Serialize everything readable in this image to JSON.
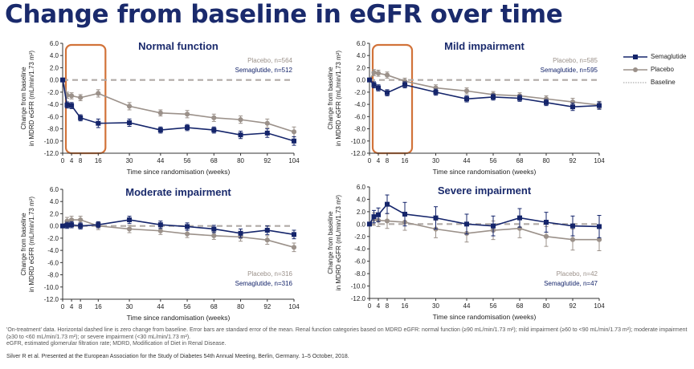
{
  "title": "Change from baseline in eGFR over time",
  "legend": {
    "items": [
      {
        "label": "Semaglutide",
        "color": "#15256b",
        "marker": "square"
      },
      {
        "label": "Placebo",
        "color": "#9b918a",
        "marker": "circle"
      },
      {
        "label": "Baseline",
        "color": "#999999",
        "marker": "dotted-line"
      }
    ]
  },
  "footnote": {
    "line1": "'On-treatment' data. Horizontal dashed line is zero change from baseline. Error bars are standard error of the mean. Renal function categories based on MDRD eGFR: normal function (≥90 mL/min/1.73 m²); mild impairment (≥60 to <90 mL/min/1.73 m²); moderate impairment (≥30 to <60 mL/min/1.73 m²); or severe impairment (<30 mL/min/1.73 m²).",
    "line2": "eGFR, estimated glomerular filtration rate; MDRD, Modification of Diet in Renal Disease."
  },
  "citation": "Silver R et al. Presented at the European Association for the Study of Diabetes 54th Annual Meeting, Berlin, Germany. 1–5 October, 2018.",
  "colors": {
    "title": "#1a2a6c",
    "semaglutide": "#15256b",
    "placebo": "#9b918a",
    "highlight": "#d2733a",
    "baseline": "#b0aaa6"
  },
  "chart_data": [
    {
      "type": "line",
      "title": "Normal function",
      "xlabel": "Time since randomisation (weeks)",
      "ylabel": "Change from baseline\nin MDRD eGFR (mL/min/1.73 m²)",
      "x_ticks": [
        0,
        4,
        8,
        16,
        30,
        44,
        56,
        68,
        80,
        92,
        104
      ],
      "ylim": [
        -12,
        6
      ],
      "y_ticks": [
        6.0,
        4.0,
        2.0,
        0.0,
        -2.0,
        -4.0,
        -6.0,
        -8.0,
        -10.0,
        -12.0
      ],
      "n_labels": [
        "Placebo, n=564",
        "Semaglutide, n=512"
      ],
      "highlight_weeks": [
        0,
        16
      ],
      "series": [
        {
          "name": "Semaglutide",
          "x": [
            0,
            2,
            4,
            8,
            16,
            30,
            44,
            56,
            68,
            80,
            92,
            104
          ],
          "values": [
            0,
            -4.1,
            -4.2,
            -6.2,
            -7.1,
            -7.0,
            -8.2,
            -7.8,
            -8.2,
            -9.0,
            -8.7,
            -10.0
          ],
          "errors": [
            0,
            0.5,
            0.5,
            0.5,
            0.7,
            0.6,
            0.5,
            0.5,
            0.5,
            0.6,
            0.7,
            0.7
          ]
        },
        {
          "name": "Placebo",
          "x": [
            0,
            2,
            4,
            8,
            16,
            30,
            44,
            56,
            68,
            80,
            92,
            104
          ],
          "values": [
            0,
            -2.5,
            -2.6,
            -2.9,
            -2.2,
            -4.3,
            -5.4,
            -5.6,
            -6.2,
            -6.5,
            -7.1,
            -8.5
          ],
          "errors": [
            0,
            0.5,
            0.5,
            0.5,
            0.6,
            0.6,
            0.5,
            0.6,
            0.6,
            0.6,
            0.7,
            0.8
          ]
        }
      ]
    },
    {
      "type": "line",
      "title": "Mild impairment",
      "xlabel": "Time since randomisation (weeks)",
      "ylabel": "Change from baseline\nin MDRD eGFR (mL/min/1.73 m²)",
      "x_ticks": [
        0,
        4,
        8,
        16,
        30,
        44,
        56,
        68,
        80,
        92,
        104
      ],
      "ylim": [
        -12,
        6
      ],
      "y_ticks": [
        6.0,
        4.0,
        2.0,
        0.0,
        -2.0,
        -4.0,
        -6.0,
        -8.0,
        -10.0,
        -12.0
      ],
      "n_labels": [
        "Placebo, n=585",
        "Semaglutide, n=595"
      ],
      "highlight_weeks": [
        0,
        16
      ],
      "series": [
        {
          "name": "Semaglutide",
          "x": [
            0,
            2,
            4,
            8,
            16,
            30,
            44,
            56,
            68,
            80,
            92,
            104
          ],
          "values": [
            0,
            -0.8,
            -1.3,
            -2.1,
            -0.8,
            -2.0,
            -3.1,
            -2.8,
            -3.0,
            -3.7,
            -4.4,
            -4.2
          ],
          "errors": [
            0,
            0.5,
            0.5,
            0.5,
            0.5,
            0.5,
            0.5,
            0.5,
            0.5,
            0.5,
            0.6,
            0.6
          ]
        },
        {
          "name": "Placebo",
          "x": [
            0,
            2,
            4,
            8,
            16,
            30,
            44,
            56,
            68,
            80,
            92,
            104
          ],
          "values": [
            0,
            1.2,
            1.1,
            0.8,
            -0.2,
            -1.3,
            -1.8,
            -2.4,
            -2.6,
            -3.1,
            -3.6,
            -4.1
          ],
          "errors": [
            0,
            0.5,
            0.5,
            0.5,
            0.5,
            0.5,
            0.5,
            0.5,
            0.5,
            0.5,
            0.6,
            0.6
          ]
        }
      ]
    },
    {
      "type": "line",
      "title": "Moderate impairment",
      "xlabel": "Time since randomisation (weeks)",
      "ylabel": "Change from baseline\nin MDRD eGFR (mL/min/1.73 m²)",
      "x_ticks": [
        0,
        4,
        8,
        16,
        30,
        44,
        56,
        68,
        80,
        92,
        104
      ],
      "ylim": [
        -12,
        6
      ],
      "y_ticks": [
        6.0,
        4.0,
        2.0,
        0.0,
        -2.0,
        -4.0,
        -6.0,
        -8.0,
        -10.0,
        -12.0
      ],
      "n_labels": [
        "Placebo, n=316",
        "Semaglutide, n=316"
      ],
      "highlight_weeks": [],
      "series": [
        {
          "name": "Semaglutide",
          "x": [
            0,
            2,
            4,
            8,
            16,
            30,
            44,
            56,
            68,
            80,
            92,
            104
          ],
          "values": [
            0,
            0.1,
            0.2,
            0.0,
            0.2,
            1.0,
            0.2,
            -0.1,
            -0.5,
            -1.2,
            -0.7,
            -1.4
          ],
          "errors": [
            0,
            0.5,
            0.5,
            0.5,
            0.5,
            0.6,
            0.6,
            0.6,
            0.6,
            0.7,
            0.7,
            0.7
          ]
        },
        {
          "name": "Placebo",
          "x": [
            0,
            2,
            4,
            8,
            16,
            30,
            44,
            56,
            68,
            80,
            92,
            104
          ],
          "values": [
            0,
            0.8,
            1.0,
            1.0,
            0.0,
            -0.5,
            -0.8,
            -1.3,
            -1.6,
            -1.8,
            -2.3,
            -3.5
          ],
          "errors": [
            0,
            0.6,
            0.6,
            0.6,
            0.6,
            0.6,
            0.6,
            0.6,
            0.6,
            0.7,
            0.7,
            0.7
          ]
        }
      ]
    },
    {
      "type": "line",
      "title": "Severe impairment",
      "xlabel": "Time since randomisation (weeks)",
      "ylabel": "Change from baseline\nin MDRD eGFR (mL/min/1.73 m²)",
      "x_ticks": [
        0,
        4,
        8,
        16,
        30,
        44,
        56,
        68,
        80,
        92,
        104
      ],
      "ylim": [
        -12,
        6
      ],
      "y_ticks": [
        6.0,
        4.0,
        2.0,
        0.0,
        -2.0,
        -4.0,
        -6.0,
        -8.0,
        -10.0,
        -12.0
      ],
      "n_labels": [
        "Placebo, n=42",
        "Semaglutide, n=47"
      ],
      "highlight_weeks": [],
      "series": [
        {
          "name": "Semaglutide",
          "x": [
            0,
            2,
            4,
            8,
            16,
            30,
            44,
            56,
            68,
            80,
            92,
            104
          ],
          "values": [
            0,
            1.2,
            1.5,
            3.2,
            1.6,
            1.0,
            0.0,
            -0.3,
            1.0,
            0.3,
            -0.3,
            -0.4
          ],
          "errors": [
            0,
            1.0,
            1.1,
            1.5,
            1.9,
            1.8,
            1.6,
            1.6,
            1.5,
            1.6,
            1.6,
            1.8
          ]
        },
        {
          "name": "Placebo",
          "x": [
            0,
            2,
            4,
            8,
            16,
            30,
            44,
            56,
            68,
            80,
            92,
            104
          ],
          "values": [
            0,
            0.8,
            0.6,
            0.5,
            0.3,
            -0.8,
            -1.5,
            -1.0,
            -0.7,
            -2.0,
            -2.5,
            -2.5
          ],
          "errors": [
            0,
            1.0,
            1.0,
            1.2,
            1.3,
            1.4,
            1.4,
            1.5,
            1.5,
            1.6,
            1.7,
            1.8
          ]
        }
      ]
    }
  ]
}
